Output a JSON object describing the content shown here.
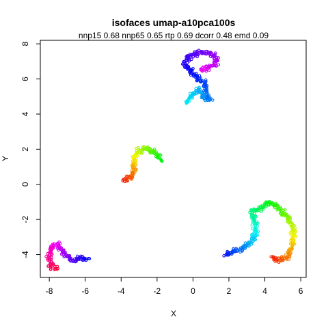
{
  "chart_data": {
    "type": "scatter",
    "title": "isofaces umap-a10pca100s",
    "subtitle": "nnp15 0.68 nnp65 0.65 rtp 0.69 dcorr 0.48 emd 0.09",
    "xlabel": "X",
    "ylabel": "Y",
    "xlim": [
      -8.5,
      6.3
    ],
    "ylim": [
      -5.3,
      8.2
    ],
    "xticks": [
      -8,
      -6,
      -4,
      -2,
      0,
      2,
      4,
      6
    ],
    "yticks": [
      -4,
      -2,
      0,
      2,
      4,
      6,
      8
    ],
    "xtick_labels": [
      "-8",
      "-6",
      "-4",
      "-2",
      "0",
      "2",
      "4",
      "6"
    ],
    "ytick_labels": [
      "-4",
      "-2",
      "0",
      "2",
      "4",
      "6",
      "8"
    ],
    "grid": false,
    "legend": "none",
    "marker": "open-circle",
    "color_scale": "rainbow",
    "clusters": [
      {
        "label": "top",
        "path": [
          [
            -0.4,
            4.6
          ],
          [
            -0.1,
            5.0
          ],
          [
            0.3,
            5.4
          ],
          [
            0.6,
            5.0
          ],
          [
            0.9,
            4.8
          ],
          [
            0.6,
            5.8
          ],
          [
            -0.2,
            6.5
          ],
          [
            -0.5,
            6.9
          ],
          [
            -0.2,
            7.3
          ],
          [
            0.3,
            7.5
          ],
          [
            0.8,
            7.5
          ],
          [
            1.2,
            7.3
          ],
          [
            1.4,
            7.0
          ],
          [
            1.0,
            6.7
          ],
          [
            0.4,
            6.5
          ]
        ],
        "hue": [
          0.5,
          0.83
        ]
      },
      {
        "label": "middle",
        "path": [
          [
            -1.8,
            1.4
          ],
          [
            -2.1,
            1.8
          ],
          [
            -2.5,
            2.0
          ],
          [
            -2.9,
            2.0
          ],
          [
            -3.2,
            1.7
          ],
          [
            -3.3,
            1.2
          ],
          [
            -3.3,
            0.8
          ],
          [
            -3.4,
            0.5
          ],
          [
            -3.6,
            0.3
          ],
          [
            -3.9,
            0.2
          ]
        ],
        "hue": [
          0.35,
          0.02
        ]
      },
      {
        "label": "bottom-left",
        "path": [
          [
            -5.9,
            -4.2
          ],
          [
            -6.3,
            -4.25
          ],
          [
            -6.7,
            -4.3
          ],
          [
            -7.0,
            -4.1
          ],
          [
            -7.3,
            -3.8
          ],
          [
            -7.5,
            -3.4
          ],
          [
            -7.8,
            -3.5
          ],
          [
            -7.9,
            -3.8
          ],
          [
            -8.0,
            -4.3
          ],
          [
            -7.9,
            -4.7
          ],
          [
            -7.6,
            -4.8
          ]
        ],
        "hue": [
          0.66,
          0.96
        ]
      },
      {
        "label": "bottom-right",
        "path": [
          [
            1.8,
            -4.0
          ],
          [
            2.2,
            -3.9
          ],
          [
            2.6,
            -3.7
          ],
          [
            3.0,
            -3.5
          ],
          [
            3.3,
            -3.2
          ],
          [
            3.5,
            -2.6
          ],
          [
            3.4,
            -2.0
          ],
          [
            3.3,
            -1.5
          ],
          [
            3.7,
            -1.4
          ],
          [
            4.1,
            -1.1
          ],
          [
            4.5,
            -1.1
          ],
          [
            4.8,
            -1.4
          ],
          [
            5.1,
            -1.7
          ],
          [
            5.4,
            -2.1
          ],
          [
            5.6,
            -2.5
          ],
          [
            5.6,
            -3.0
          ],
          [
            5.5,
            -3.5
          ],
          [
            5.4,
            -3.9
          ],
          [
            5.2,
            -4.2
          ],
          [
            4.8,
            -4.3
          ],
          [
            4.4,
            -4.2
          ]
        ],
        "hue": [
          0.66,
          0.02
        ]
      }
    ]
  }
}
